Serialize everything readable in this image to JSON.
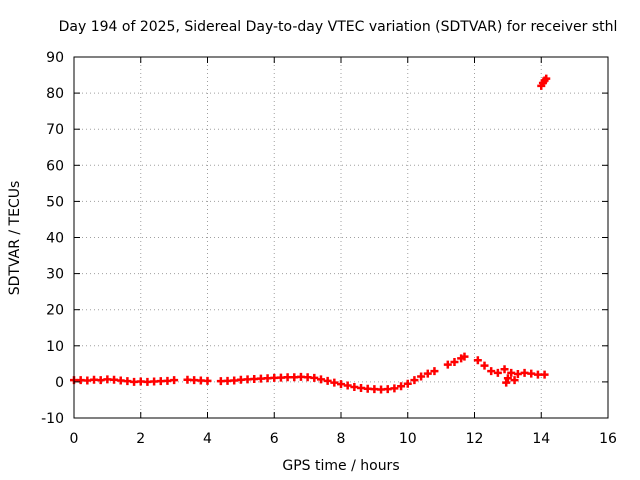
{
  "chart_data": {
    "type": "scatter",
    "title": "Day 194 of 2025, Sidereal Day-to-day VTEC variation (SDTVAR) for receiver sthl",
    "xlabel": "GPS time / hours",
    "ylabel": "SDTVAR / TECUs",
    "xlim": [
      0,
      16
    ],
    "ylim": [
      -10,
      90
    ],
    "x_ticks": [
      0,
      2,
      4,
      6,
      8,
      10,
      12,
      14,
      16
    ],
    "y_ticks": [
      -10,
      0,
      10,
      20,
      30,
      40,
      50,
      60,
      70,
      80,
      90
    ],
    "x_tick_labels": [
      "0",
      "2",
      "4",
      "6",
      "8",
      "10",
      "12",
      "14",
      "16"
    ],
    "y_tick_labels": [
      "-10",
      "0",
      "10",
      "20",
      "30",
      "40",
      "50",
      "60",
      "70",
      "80",
      "90"
    ],
    "grid": true,
    "marker": "plus",
    "series": [
      {
        "name": "SDTVAR",
        "color": "#ff0000",
        "points": [
          [
            0.0,
            0.5
          ],
          [
            0.2,
            0.5
          ],
          [
            0.4,
            0.4
          ],
          [
            0.6,
            0.6
          ],
          [
            0.8,
            0.5
          ],
          [
            1.0,
            0.7
          ],
          [
            1.2,
            0.6
          ],
          [
            1.4,
            0.4
          ],
          [
            1.6,
            0.2
          ],
          [
            1.8,
            0.0
          ],
          [
            2.0,
            0.1
          ],
          [
            2.2,
            0.0
          ],
          [
            2.4,
            0.1
          ],
          [
            2.6,
            0.2
          ],
          [
            2.8,
            0.3
          ],
          [
            3.0,
            0.5
          ],
          [
            3.4,
            0.6
          ],
          [
            3.6,
            0.5
          ],
          [
            3.8,
            0.4
          ],
          [
            4.0,
            0.3
          ],
          [
            4.4,
            0.2
          ],
          [
            4.6,
            0.3
          ],
          [
            4.8,
            0.4
          ],
          [
            5.0,
            0.6
          ],
          [
            5.2,
            0.7
          ],
          [
            5.4,
            0.8
          ],
          [
            5.6,
            0.9
          ],
          [
            5.8,
            1.0
          ],
          [
            6.0,
            1.1
          ],
          [
            6.2,
            1.2
          ],
          [
            6.4,
            1.3
          ],
          [
            6.6,
            1.3
          ],
          [
            6.8,
            1.4
          ],
          [
            7.0,
            1.3
          ],
          [
            7.2,
            1.1
          ],
          [
            7.4,
            0.7
          ],
          [
            7.6,
            0.3
          ],
          [
            7.8,
            -0.2
          ],
          [
            8.0,
            -0.6
          ],
          [
            8.2,
            -1.0
          ],
          [
            8.4,
            -1.4
          ],
          [
            8.6,
            -1.7
          ],
          [
            8.8,
            -1.9
          ],
          [
            9.0,
            -2.0
          ],
          [
            9.2,
            -2.1
          ],
          [
            9.4,
            -2.0
          ],
          [
            9.6,
            -1.8
          ],
          [
            9.8,
            -1.2
          ],
          [
            10.0,
            -0.5
          ],
          [
            10.2,
            0.5
          ],
          [
            10.4,
            1.5
          ],
          [
            10.6,
            2.3
          ],
          [
            10.8,
            3.0
          ],
          [
            11.2,
            4.8
          ],
          [
            11.4,
            5.5
          ],
          [
            11.6,
            6.5
          ],
          [
            11.7,
            7.0
          ],
          [
            12.1,
            6.0
          ],
          [
            12.3,
            4.5
          ],
          [
            12.5,
            3.0
          ],
          [
            12.7,
            2.5
          ],
          [
            12.9,
            3.5
          ],
          [
            13.1,
            2.5
          ],
          [
            13.3,
            2.2
          ],
          [
            13.5,
            2.5
          ],
          [
            13.7,
            2.3
          ],
          [
            13.9,
            2.0
          ],
          [
            14.1,
            2.0
          ],
          [
            13.0,
            1.0
          ],
          [
            13.2,
            0.5
          ],
          [
            12.95,
            -0.2
          ],
          [
            14.0,
            82.0
          ],
          [
            14.05,
            82.8
          ],
          [
            14.1,
            83.5
          ],
          [
            14.15,
            84.0
          ]
        ]
      }
    ]
  }
}
